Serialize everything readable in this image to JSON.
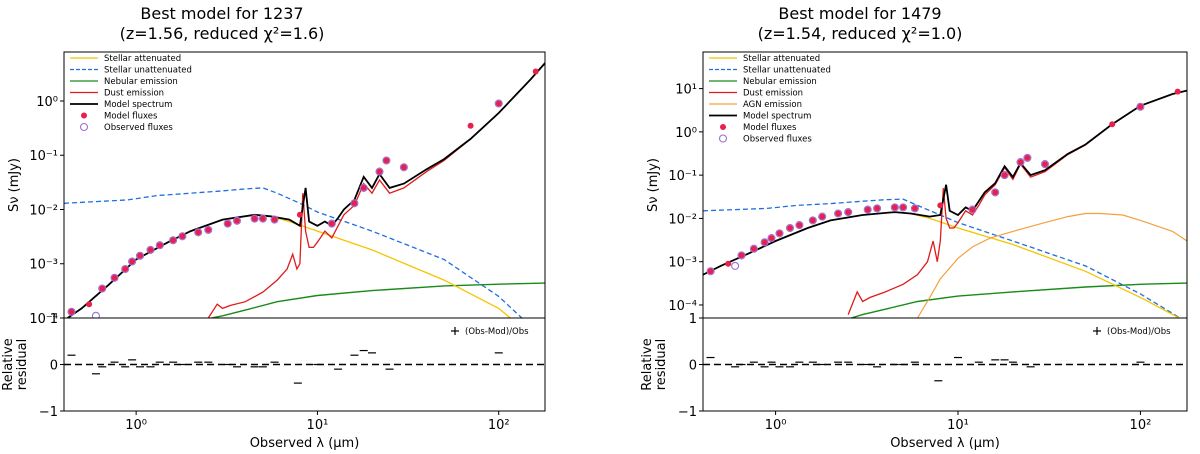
{
  "colors": {
    "stellar_attenuated": "#f5c400",
    "stellar_unattenuated": "#1f6fe0",
    "nebular": "#1a8a1a",
    "dust": "#e01b1b",
    "agn": "#f5a040",
    "model": "#000000",
    "model_flux": "#e8204a",
    "observed_flux": "#9b6fd8"
  },
  "chart_data": [
    {
      "type": "line",
      "title_line1": "Best model for 1237",
      "title_line2": "(z=1.56, reduced χ²=1.6)",
      "xlabel": "Observed λ (μm)",
      "ylabel": "Sν (mJy)",
      "residual_label": [
        "Relative",
        "residual"
      ],
      "xscale": "log",
      "yscale": "log",
      "xlim": [
        0.4,
        180
      ],
      "ylim": [
        0.0001,
        8
      ],
      "residual_ylim": [
        -1,
        1
      ],
      "x_ticks": [
        1,
        10,
        100
      ],
      "x_tick_labels": [
        "10⁰",
        "10¹",
        "10²"
      ],
      "y_ticks": [
        0.0001,
        0.001,
        0.01,
        0.1,
        1
      ],
      "y_tick_labels": [
        "10⁻⁴",
        "10⁻³",
        "10⁻²",
        "10⁻¹",
        "10⁰"
      ],
      "residual_ticks": [
        -1,
        0,
        1
      ],
      "residual_tick_labels": [
        "−1",
        "0",
        "1"
      ],
      "legend": [
        "Stellar attenuated",
        "Stellar unattenuated",
        "Nebular emission",
        "Dust emission",
        "Model spectrum",
        "Model fluxes",
        "Observed fluxes"
      ],
      "residual_legend": "(Obs-Mod)/Obs",
      "has_agn": false,
      "series": [
        {
          "name": "Stellar attenuated",
          "x": [
            0.4,
            0.5,
            0.7,
            1.0,
            1.5,
            2.0,
            3.0,
            4.5,
            5.5,
            7,
            10,
            20,
            50,
            100,
            180
          ],
          "y": [
            9e-05,
            0.00015,
            0.0004,
            0.0012,
            0.0025,
            0.004,
            0.0065,
            0.008,
            0.0075,
            0.006,
            0.004,
            0.0018,
            0.0005,
            0.00015,
            3e-05
          ]
        },
        {
          "name": "Stellar unattenuated",
          "x": [
            0.4,
            0.6,
            0.9,
            1.3,
            2.0,
            3.0,
            4.0,
            5.0,
            6.0,
            8,
            10,
            20,
            50,
            100,
            180
          ],
          "y": [
            0.013,
            0.014,
            0.015,
            0.018,
            0.02,
            0.022,
            0.024,
            0.025,
            0.02,
            0.013,
            0.009,
            0.004,
            0.0012,
            0.00025,
            4e-05
          ]
        },
        {
          "name": "Nebular emission",
          "x": [
            2.6,
            3.0,
            4.0,
            6.0,
            10,
            20,
            50,
            100,
            180
          ],
          "y": [
            0.0001,
            0.00011,
            0.00014,
            0.0002,
            0.00026,
            0.00032,
            0.00039,
            0.00042,
            0.00044
          ]
        },
        {
          "name": "Dust emission",
          "x": [
            2.5,
            2.8,
            3.0,
            3.3,
            4.0,
            5.0,
            6.0,
            6.8,
            7.3,
            7.7,
            8.0,
            8.3,
            8.6,
            9.0,
            9.5,
            10,
            11,
            12,
            13,
            14,
            16,
            18,
            20,
            22,
            25,
            30,
            40,
            50,
            70,
            100,
            150,
            180
          ],
          "y": [
            0.0001,
            0.00018,
            0.00015,
            0.00017,
            0.0002,
            0.0003,
            0.0005,
            0.0008,
            0.0015,
            0.0008,
            0.001,
            0.02,
            0.004,
            0.002,
            0.002,
            0.0025,
            0.004,
            0.003,
            0.005,
            0.008,
            0.012,
            0.03,
            0.02,
            0.035,
            0.02,
            0.025,
            0.05,
            0.08,
            0.2,
            0.6,
            2.5,
            5
          ]
        },
        {
          "name": "Model spectrum",
          "x": [
            0.4,
            0.5,
            0.7,
            1.0,
            1.5,
            2.0,
            3.0,
            4.5,
            5.5,
            7,
            8,
            8.6,
            9,
            10,
            11,
            12,
            13,
            14,
            16,
            18,
            20,
            22,
            25,
            30,
            40,
            50,
            70,
            100,
            150,
            180
          ],
          "y": [
            9e-05,
            0.00015,
            0.0004,
            0.0012,
            0.0025,
            0.004,
            0.0065,
            0.008,
            0.0075,
            0.0065,
            0.005,
            0.025,
            0.006,
            0.005,
            0.006,
            0.005,
            0.007,
            0.01,
            0.015,
            0.04,
            0.025,
            0.045,
            0.025,
            0.03,
            0.055,
            0.085,
            0.2,
            0.6,
            2.5,
            5
          ]
        },
        {
          "name": "Model fluxes",
          "x": [
            0.44,
            0.55,
            0.65,
            0.76,
            0.87,
            0.95,
            1.05,
            1.2,
            1.35,
            1.6,
            1.8,
            2.2,
            2.5,
            3.2,
            3.6,
            4.5,
            5.0,
            5.8,
            8.0,
            12.0,
            16.0,
            18.0,
            22,
            24,
            30,
            70,
            100,
            160
          ],
          "y": [
            0.00013,
            0.00018,
            0.00035,
            0.00055,
            0.0008,
            0.0011,
            0.0014,
            0.0018,
            0.0022,
            0.0027,
            0.0032,
            0.0038,
            0.0042,
            0.0055,
            0.0062,
            0.0068,
            0.0068,
            0.0065,
            0.008,
            0.0055,
            0.013,
            0.025,
            0.05,
            0.08,
            0.06,
            0.35,
            0.9,
            3.5
          ]
        },
        {
          "name": "Observed fluxes",
          "x": [
            0.44,
            0.6,
            0.65,
            0.76,
            0.87,
            0.95,
            1.05,
            1.2,
            1.35,
            1.6,
            1.8,
            2.2,
            2.5,
            3.2,
            3.6,
            4.5,
            5.0,
            5.8,
            12.0,
            16.0,
            18.0,
            22,
            24,
            30,
            100
          ],
          "y": [
            0.00013,
            0.00011,
            0.00035,
            0.00055,
            0.0008,
            0.0011,
            0.0014,
            0.0018,
            0.0022,
            0.0027,
            0.0032,
            0.0038,
            0.0042,
            0.0055,
            0.0062,
            0.0068,
            0.0068,
            0.0065,
            0.0055,
            0.013,
            0.025,
            0.05,
            0.08,
            0.06,
            0.9
          ]
        },
        {
          "name": "Residuals",
          "x": [
            0.44,
            0.6,
            0.65,
            0.76,
            0.87,
            0.95,
            1.05,
            1.2,
            1.35,
            1.6,
            1.8,
            2.2,
            2.5,
            3.2,
            3.6,
            4.5,
            5.0,
            5.8,
            7.8,
            10,
            13,
            16,
            18,
            20,
            25,
            100
          ],
          "y": [
            0.2,
            -0.2,
            -0.05,
            0.05,
            -0.05,
            0.1,
            -0.05,
            -0.05,
            0.05,
            0.05,
            0.0,
            0.05,
            0.05,
            0.0,
            -0.05,
            -0.05,
            -0.05,
            0.05,
            -0.4,
            0.0,
            -0.1,
            0.2,
            0.3,
            0.25,
            -0.1,
            0.25
          ]
        }
      ]
    },
    {
      "type": "line",
      "title_line1": "Best model for 1479",
      "title_line2": "(z=1.54, reduced χ²=1.0)",
      "xlabel": "Observed λ (μm)",
      "ylabel": "Sν (mJy)",
      "residual_label": [
        "Relative",
        "residual"
      ],
      "xscale": "log",
      "yscale": "log",
      "xlim": [
        0.4,
        180
      ],
      "ylim": [
        5e-05,
        70
      ],
      "residual_ylim": [
        -1,
        1
      ],
      "x_ticks": [
        1,
        10,
        100
      ],
      "x_tick_labels": [
        "10⁰",
        "10¹",
        "10²"
      ],
      "y_ticks": [
        0.0001,
        0.001,
        0.01,
        0.1,
        1,
        10
      ],
      "y_tick_labels": [
        "10⁻⁴",
        "10⁻³",
        "10⁻²",
        "10⁻¹",
        "10⁰",
        "10¹"
      ],
      "residual_ticks": [
        -1,
        0,
        1
      ],
      "residual_tick_labels": [
        "−1",
        "0",
        "1"
      ],
      "legend": [
        "Stellar attenuated",
        "Stellar unattenuated",
        "Nebular emission",
        "Dust emission",
        "AGN emission",
        "Model spectrum",
        "Model fluxes",
        "Observed fluxes"
      ],
      "residual_legend": "(Obs-Mod)/Obs",
      "has_agn": true,
      "series": [
        {
          "name": "Stellar attenuated",
          "x": [
            0.4,
            0.5,
            0.7,
            1.0,
            1.5,
            2.0,
            3.0,
            4.5,
            5.5,
            7,
            10,
            20,
            50,
            100,
            180
          ],
          "y": [
            0.0005,
            0.0008,
            0.0015,
            0.003,
            0.006,
            0.009,
            0.012,
            0.014,
            0.013,
            0.01,
            0.006,
            0.0025,
            0.0006,
            0.00015,
            4e-05
          ]
        },
        {
          "name": "Stellar unattenuated",
          "x": [
            0.4,
            0.6,
            0.9,
            1.3,
            2.0,
            3.0,
            4.0,
            5.0,
            6.0,
            8,
            10,
            20,
            50,
            100,
            180
          ],
          "y": [
            0.015,
            0.016,
            0.017,
            0.02,
            0.022,
            0.025,
            0.027,
            0.028,
            0.02,
            0.012,
            0.008,
            0.003,
            0.0008,
            0.00018,
            4e-05
          ]
        },
        {
          "name": "Nebular emission",
          "x": [
            2.6,
            3.0,
            4.0,
            6.0,
            10,
            20,
            50,
            100,
            180
          ],
          "y": [
            5e-05,
            6e-05,
            8e-05,
            0.00012,
            0.00016,
            0.0002,
            0.00026,
            0.0003,
            0.00032
          ]
        },
        {
          "name": "Dust emission",
          "x": [
            2.5,
            2.8,
            3.0,
            3.3,
            4.0,
            5.0,
            6.0,
            6.8,
            7.3,
            7.7,
            8.0,
            8.3,
            8.6,
            9.0,
            9.5,
            10,
            11,
            12,
            13,
            14,
            16,
            18,
            20,
            22,
            25,
            30,
            40,
            50,
            70,
            100,
            150,
            180
          ],
          "y": [
            6e-05,
            0.0002,
            0.00012,
            0.00015,
            0.0002,
            0.0003,
            0.0005,
            0.001,
            0.003,
            0.001,
            0.003,
            0.05,
            0.01,
            0.006,
            0.006,
            0.008,
            0.015,
            0.012,
            0.02,
            0.035,
            0.06,
            0.15,
            0.08,
            0.18,
            0.09,
            0.12,
            0.3,
            0.5,
            1.5,
            4,
            7.5,
            9
          ]
        },
        {
          "name": "AGN emission",
          "x": [
            6,
            7,
            8,
            10,
            12,
            15,
            20,
            30,
            40,
            50,
            60,
            80,
            100,
            150,
            180
          ],
          "y": [
            5e-05,
            0.00015,
            0.0004,
            0.0012,
            0.0022,
            0.0035,
            0.005,
            0.008,
            0.011,
            0.013,
            0.013,
            0.012,
            0.009,
            0.005,
            0.003
          ]
        },
        {
          "name": "Model spectrum",
          "x": [
            0.4,
            0.5,
            0.7,
            1.0,
            1.5,
            2.0,
            3.0,
            4.5,
            5.5,
            7,
            8,
            8.6,
            9,
            10,
            11,
            12,
            13,
            14,
            16,
            18,
            20,
            22,
            25,
            30,
            40,
            50,
            70,
            100,
            150,
            180
          ],
          "y": [
            0.0005,
            0.0008,
            0.0015,
            0.003,
            0.006,
            0.009,
            0.012,
            0.014,
            0.013,
            0.011,
            0.012,
            0.06,
            0.015,
            0.012,
            0.018,
            0.015,
            0.025,
            0.04,
            0.065,
            0.16,
            0.09,
            0.19,
            0.1,
            0.13,
            0.31,
            0.51,
            1.5,
            4,
            7.5,
            9
          ]
        },
        {
          "name": "Model fluxes",
          "x": [
            0.44,
            0.55,
            0.65,
            0.76,
            0.87,
            0.95,
            1.05,
            1.2,
            1.35,
            1.6,
            1.8,
            2.2,
            2.5,
            3.2,
            3.6,
            4.5,
            5.0,
            5.8,
            8.0,
            12.0,
            16.0,
            18.0,
            22,
            24,
            30,
            70,
            100,
            160
          ],
          "y": [
            0.0006,
            0.0009,
            0.0014,
            0.002,
            0.0028,
            0.0035,
            0.0045,
            0.006,
            0.007,
            0.009,
            0.011,
            0.013,
            0.014,
            0.016,
            0.017,
            0.018,
            0.018,
            0.017,
            0.02,
            0.016,
            0.04,
            0.1,
            0.2,
            0.25,
            0.18,
            1.5,
            3.8,
            8.5
          ]
        },
        {
          "name": "Observed fluxes",
          "x": [
            0.44,
            0.6,
            0.65,
            0.76,
            0.87,
            0.95,
            1.05,
            1.2,
            1.35,
            1.6,
            1.8,
            2.2,
            2.5,
            3.2,
            3.6,
            4.5,
            5.0,
            5.8,
            12.0,
            16.0,
            18.0,
            22,
            24,
            30,
            100
          ],
          "y": [
            0.0006,
            0.0008,
            0.0014,
            0.002,
            0.0028,
            0.0035,
            0.0045,
            0.006,
            0.007,
            0.009,
            0.011,
            0.013,
            0.014,
            0.016,
            0.017,
            0.018,
            0.018,
            0.017,
            0.016,
            0.04,
            0.1,
            0.2,
            0.25,
            0.18,
            3.8
          ]
        },
        {
          "name": "Residuals",
          "x": [
            0.44,
            0.6,
            0.65,
            0.76,
            0.87,
            0.95,
            1.05,
            1.2,
            1.35,
            1.6,
            1.8,
            2.2,
            2.5,
            3.2,
            3.6,
            4.5,
            5.0,
            5.8,
            7.8,
            10,
            13,
            16,
            18,
            20,
            25,
            100
          ],
          "y": [
            0.15,
            -0.05,
            0.0,
            0.05,
            -0.05,
            0.05,
            -0.05,
            -0.05,
            0.05,
            0.05,
            0.0,
            0.05,
            0.05,
            0.0,
            -0.05,
            0.0,
            0.0,
            0.05,
            -0.35,
            0.15,
            0.05,
            0.1,
            0.1,
            0.05,
            -0.05,
            0.05
          ]
        }
      ]
    }
  ]
}
